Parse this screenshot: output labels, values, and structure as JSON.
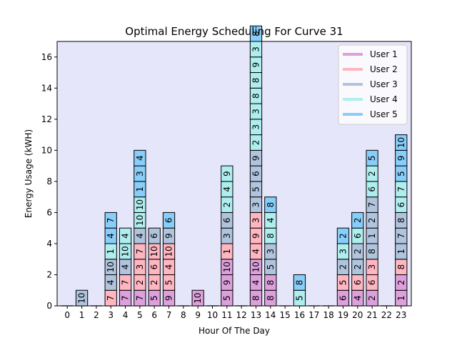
{
  "chart_data": {
    "type": "bar",
    "title": "Optimal Energy Scheduling For Curve 31",
    "xlabel": "Hour Of The Day",
    "ylabel": "Energy Usage (kWH)",
    "categories": [
      "0",
      "1",
      "2",
      "3",
      "4",
      "5",
      "6",
      "7",
      "8",
      "9",
      "10",
      "11",
      "12",
      "13",
      "14",
      "15",
      "16",
      "17",
      "18",
      "19",
      "20",
      "21",
      "22",
      "23"
    ],
    "ylim": [
      0,
      17
    ],
    "yticks": [
      "0",
      "2",
      "4",
      "6",
      "8",
      "10",
      "12",
      "14",
      "16"
    ],
    "legend_position": "top-right",
    "plot_background": "#e6e6fa",
    "series": [
      {
        "name": "User 1",
        "color": "#dda0dd"
      },
      {
        "name": "User 2",
        "color": "#ffb6c1"
      },
      {
        "name": "User 3",
        "color": "#b0c4de"
      },
      {
        "name": "User 4",
        "color": "#afeeee"
      },
      {
        "name": "User 5",
        "color": "#87cefa"
      }
    ],
    "stacks": [
      [],
      [
        {
          "user": 3,
          "label": "10"
        }
      ],
      [],
      [
        {
          "user": 2,
          "label": "7"
        },
        {
          "user": 3,
          "label": "4"
        },
        {
          "user": 3,
          "label": "10"
        },
        {
          "user": 4,
          "label": "1"
        },
        {
          "user": 5,
          "label": "4"
        },
        {
          "user": 5,
          "label": "7"
        }
      ],
      [
        {
          "user": 1,
          "label": "7"
        },
        {
          "user": 2,
          "label": "7"
        },
        {
          "user": 3,
          "label": "4"
        },
        {
          "user": 4,
          "label": "10"
        },
        {
          "user": 4,
          "label": "4"
        }
      ],
      [
        {
          "user": 1,
          "label": "7"
        },
        {
          "user": 2,
          "label": "2"
        },
        {
          "user": 2,
          "label": "3"
        },
        {
          "user": 2,
          "label": "7"
        },
        {
          "user": 3,
          "label": "4"
        },
        {
          "user": 4,
          "label": "10"
        },
        {
          "user": 4,
          "label": "10"
        },
        {
          "user": 5,
          "label": "1"
        },
        {
          "user": 5,
          "label": "3"
        },
        {
          "user": 5,
          "label": "4"
        }
      ],
      [
        {
          "user": 1,
          "label": "5"
        },
        {
          "user": 2,
          "label": "2"
        },
        {
          "user": 2,
          "label": "6"
        },
        {
          "user": 2,
          "label": "10"
        },
        {
          "user": 3,
          "label": "6"
        }
      ],
      [
        {
          "user": 1,
          "label": "9"
        },
        {
          "user": 2,
          "label": "5"
        },
        {
          "user": 2,
          "label": "4"
        },
        {
          "user": 2,
          "label": "10"
        },
        {
          "user": 3,
          "label": "9"
        },
        {
          "user": 5,
          "label": "6"
        }
      ],
      [],
      [
        {
          "user": 1,
          "label": "10"
        }
      ],
      [],
      [
        {
          "user": 1,
          "label": "5"
        },
        {
          "user": 1,
          "label": "9"
        },
        {
          "user": 1,
          "label": "10"
        },
        {
          "user": 2,
          "label": "1"
        },
        {
          "user": 3,
          "label": "3"
        },
        {
          "user": 3,
          "label": "6"
        },
        {
          "user": 4,
          "label": "2"
        },
        {
          "user": 4,
          "label": "4"
        },
        {
          "user": 4,
          "label": "9"
        }
      ],
      [],
      [
        {
          "user": 1,
          "label": "8"
        },
        {
          "user": 1,
          "label": "4"
        },
        {
          "user": 1,
          "label": "10"
        },
        {
          "user": 2,
          "label": "4"
        },
        {
          "user": 2,
          "label": "9"
        },
        {
          "user": 2,
          "label": "3"
        },
        {
          "user": 3,
          "label": "3"
        },
        {
          "user": 3,
          "label": "5"
        },
        {
          "user": 3,
          "label": "6"
        },
        {
          "user": 3,
          "label": "9"
        },
        {
          "user": 4,
          "label": "2"
        },
        {
          "user": 4,
          "label": "3"
        },
        {
          "user": 4,
          "label": "3"
        },
        {
          "user": 4,
          "label": "8"
        },
        {
          "user": 4,
          "label": "8"
        },
        {
          "user": 4,
          "label": "9"
        },
        {
          "user": 4,
          "label": "3"
        },
        {
          "user": 5,
          "label": "8"
        }
      ],
      [
        {
          "user": 1,
          "label": "8"
        },
        {
          "user": 1,
          "label": "8"
        },
        {
          "user": 3,
          "label": "5"
        },
        {
          "user": 3,
          "label": "3"
        },
        {
          "user": 4,
          "label": "8"
        },
        {
          "user": 4,
          "label": "4"
        },
        {
          "user": 5,
          "label": "8"
        }
      ],
      [],
      [
        {
          "user": 4,
          "label": "5"
        },
        {
          "user": 5,
          "label": "8"
        }
      ],
      [],
      [],
      [
        {
          "user": 1,
          "label": "6"
        },
        {
          "user": 2,
          "label": "5"
        },
        {
          "user": 3,
          "label": "2"
        },
        {
          "user": 4,
          "label": "3"
        },
        {
          "user": 5,
          "label": "2"
        }
      ],
      [
        {
          "user": 1,
          "label": "4"
        },
        {
          "user": 2,
          "label": "6"
        },
        {
          "user": 3,
          "label": "2"
        },
        {
          "user": 3,
          "label": "2"
        },
        {
          "user": 4,
          "label": "6"
        },
        {
          "user": 5,
          "label": "2"
        }
      ],
      [
        {
          "user": 1,
          "label": "2"
        },
        {
          "user": 2,
          "label": "6"
        },
        {
          "user": 2,
          "label": "3"
        },
        {
          "user": 3,
          "label": "8"
        },
        {
          "user": 3,
          "label": "1"
        },
        {
          "user": 3,
          "label": "2"
        },
        {
          "user": 3,
          "label": "7"
        },
        {
          "user": 4,
          "label": "6"
        },
        {
          "user": 4,
          "label": "2"
        },
        {
          "user": 5,
          "label": "5"
        }
      ],
      [],
      [
        {
          "user": 1,
          "label": "1"
        },
        {
          "user": 1,
          "label": "2"
        },
        {
          "user": 2,
          "label": "8"
        },
        {
          "user": 3,
          "label": "1"
        },
        {
          "user": 3,
          "label": "7"
        },
        {
          "user": 3,
          "label": "8"
        },
        {
          "user": 4,
          "label": "6"
        },
        {
          "user": 4,
          "label": "7"
        },
        {
          "user": 5,
          "label": "5"
        },
        {
          "user": 5,
          "label": "9"
        },
        {
          "user": 5,
          "label": "10"
        }
      ]
    ]
  }
}
